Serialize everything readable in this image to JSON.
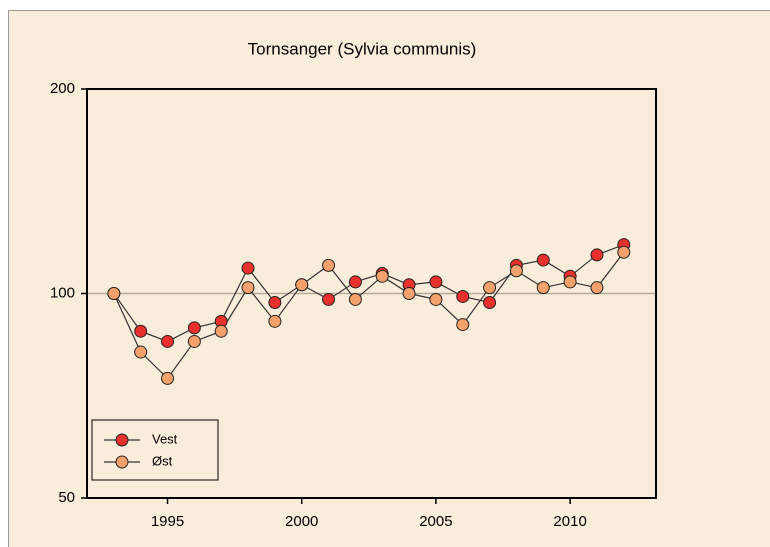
{
  "chart_data": {
    "type": "line",
    "title": "Tornsanger (Sylvia communis)",
    "x": [
      1993,
      1994,
      1995,
      1996,
      1997,
      1998,
      1999,
      2000,
      2001,
      2002,
      2003,
      2004,
      2005,
      2006,
      2007,
      2008,
      2009,
      2010,
      2011,
      2012
    ],
    "series": [
      {
        "name": "Vest",
        "color": "#e8312c",
        "values": [
          100,
          88,
          85,
          89,
          91,
          109,
          97,
          103,
          98,
          104,
          107,
          103,
          104,
          99,
          97,
          110,
          112,
          106,
          114,
          118
        ]
      },
      {
        "name": "Øst",
        "color": "#f4a16c",
        "values": [
          100,
          82,
          75,
          85,
          88,
          102,
          91,
          103,
          110,
          98,
          106,
          100,
          98,
          90,
          102,
          108,
          102,
          104,
          102,
          115
        ]
      }
    ],
    "xlim": [
      1992,
      2013.2
    ],
    "xticks": [
      1995,
      2000,
      2005,
      2010
    ],
    "ylim": [
      50,
      200
    ],
    "yticks": [
      50,
      100,
      200
    ],
    "log_y": true,
    "reference_line": 100,
    "legend": "lower left"
  }
}
